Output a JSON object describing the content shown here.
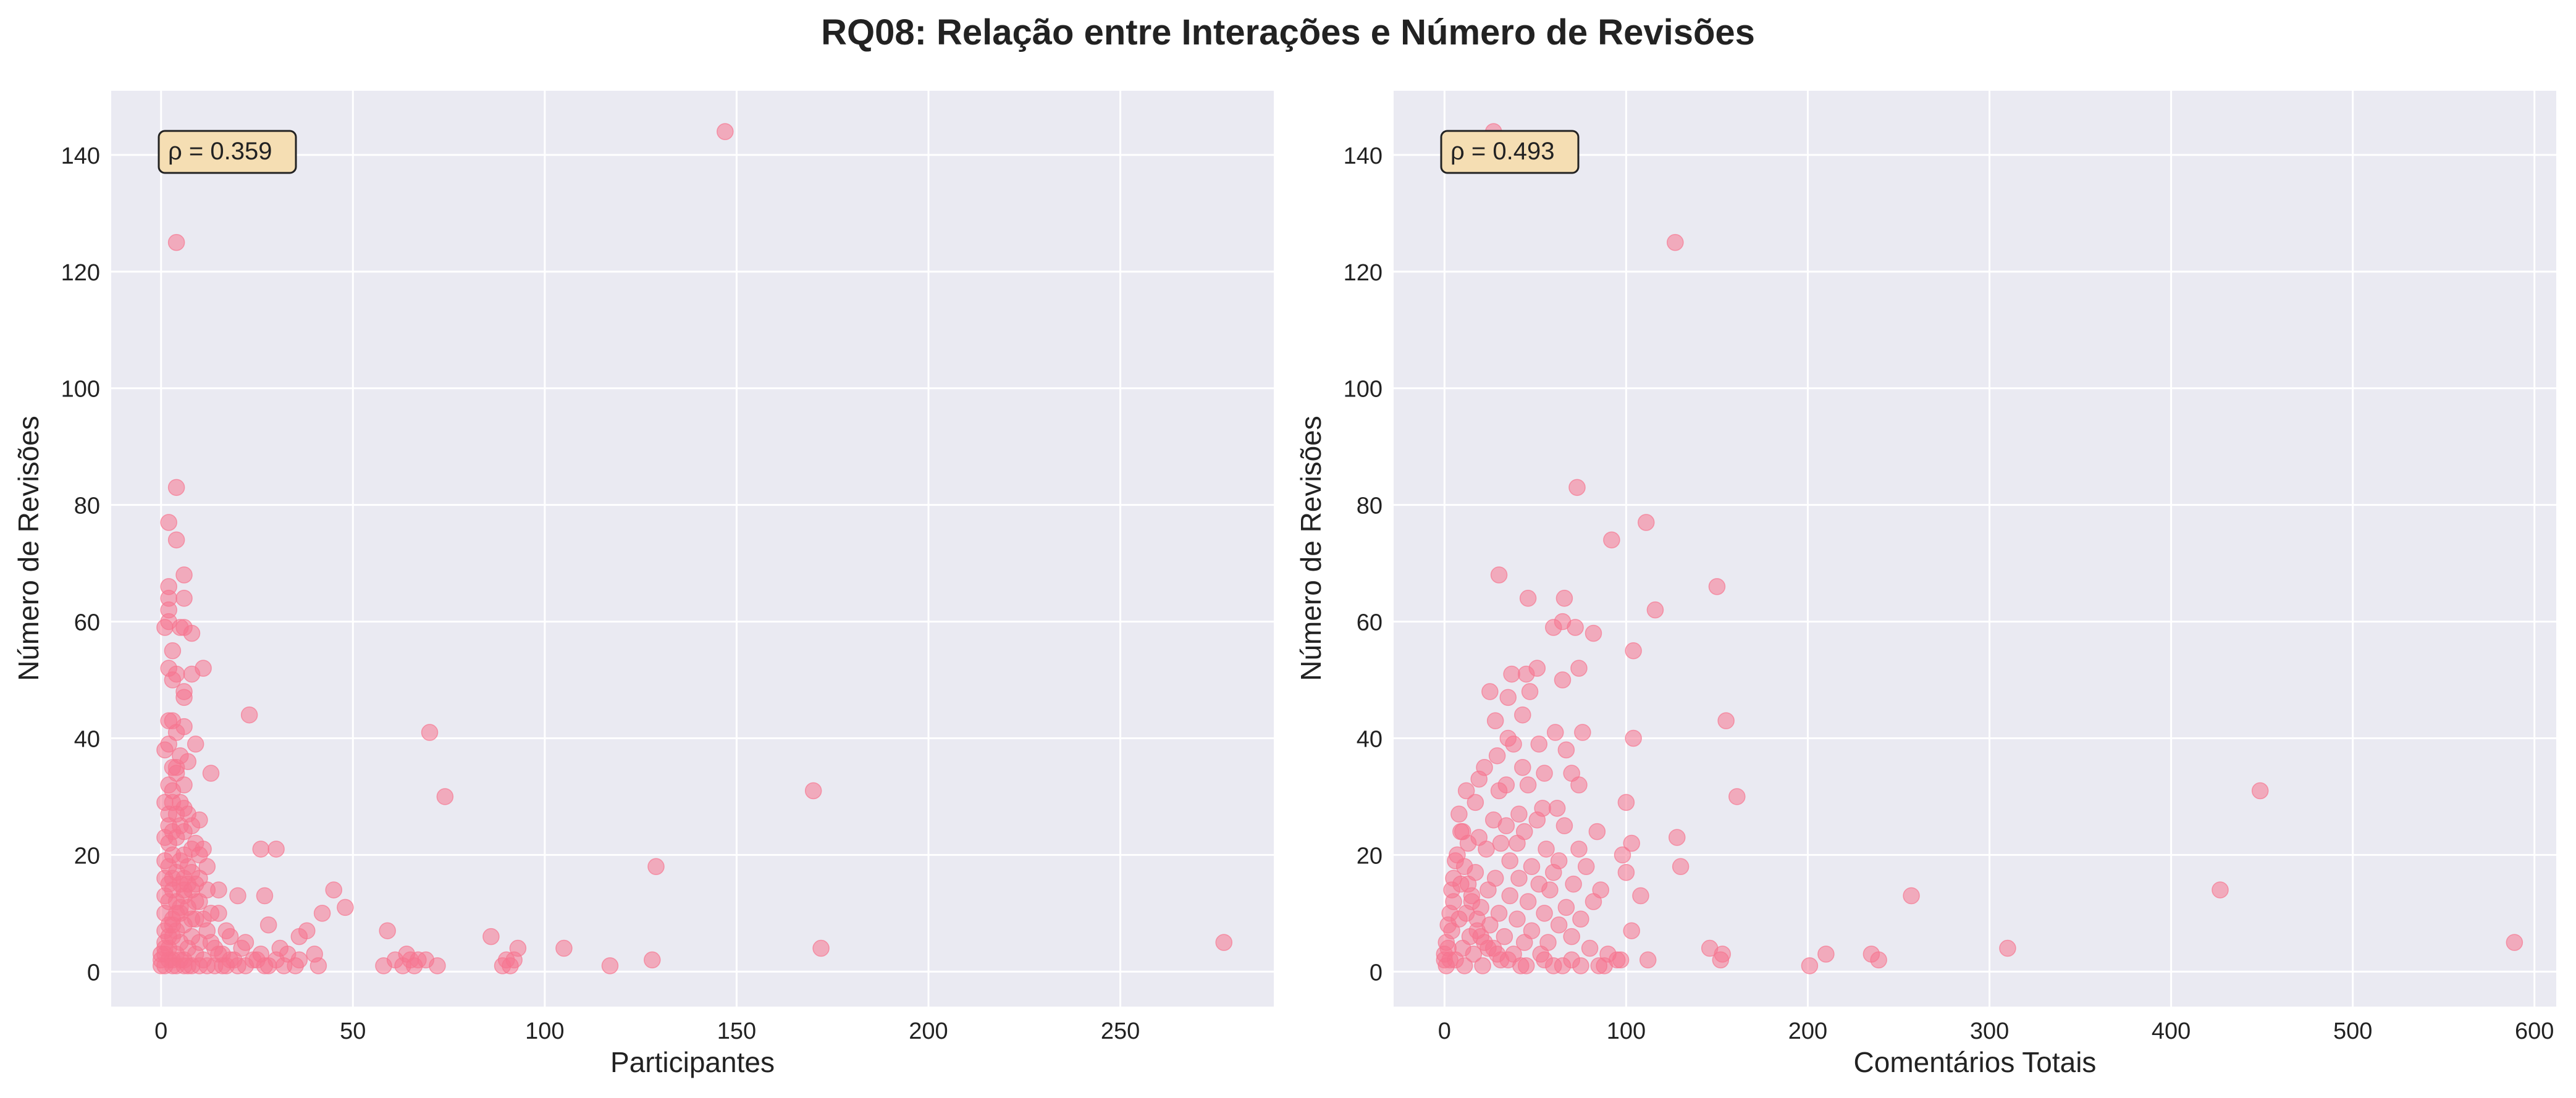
{
  "title": "RQ08: Relação entre Interações e Número de Revisões",
  "colors": {
    "background": "#ffffff",
    "plot_bg": "#eaeaf2",
    "grid": "#ffffff",
    "points": "#f6758f",
    "annotation_bg": "#f5deb3",
    "annotation_border": "#222222",
    "text": "#222222"
  },
  "chart_data": [
    {
      "type": "scatter",
      "title": "",
      "xlabel": "Participantes",
      "ylabel": "Número de Revisões",
      "annotation": "ρ = 0.359",
      "annotation_position": "top-left",
      "xlim": [
        -13,
        290
      ],
      "ylim": [
        -6,
        151
      ],
      "xticks": [
        0,
        50,
        100,
        150,
        200,
        250
      ],
      "yticks": [
        0,
        20,
        40,
        60,
        80,
        100,
        120,
        140
      ],
      "grid": true,
      "points": [
        [
          147,
          144
        ],
        [
          4,
          125
        ],
        [
          4,
          83
        ],
        [
          2,
          77
        ],
        [
          4,
          74
        ],
        [
          6,
          68
        ],
        [
          2,
          66
        ],
        [
          2,
          64
        ],
        [
          2,
          62
        ],
        [
          6,
          64
        ],
        [
          2,
          60
        ],
        [
          1,
          59
        ],
        [
          5,
          59
        ],
        [
          6,
          59
        ],
        [
          8,
          58
        ],
        [
          3,
          55
        ],
        [
          11,
          52
        ],
        [
          2,
          52
        ],
        [
          3,
          50
        ],
        [
          4,
          51
        ],
        [
          8,
          51
        ],
        [
          6,
          48
        ],
        [
          6,
          47
        ],
        [
          23,
          44
        ],
        [
          2,
          43
        ],
        [
          3,
          43
        ],
        [
          6,
          42
        ],
        [
          4,
          41
        ],
        [
          70,
          41
        ],
        [
          9,
          39
        ],
        [
          2,
          39
        ],
        [
          1,
          38
        ],
        [
          5,
          37
        ],
        [
          3,
          35
        ],
        [
          4,
          35
        ],
        [
          7,
          36
        ],
        [
          4,
          34
        ],
        [
          13,
          34
        ],
        [
          2,
          32
        ],
        [
          3,
          31
        ],
        [
          6,
          32
        ],
        [
          170,
          31
        ],
        [
          74,
          30
        ],
        [
          1,
          29
        ],
        [
          3,
          29
        ],
        [
          5,
          29
        ],
        [
          6,
          28
        ],
        [
          2,
          27
        ],
        [
          4,
          27
        ],
        [
          7,
          27
        ],
        [
          10,
          26
        ],
        [
          2,
          25
        ],
        [
          5,
          25
        ],
        [
          8,
          25
        ],
        [
          3,
          24
        ],
        [
          6,
          24
        ],
        [
          1,
          23
        ],
        [
          4,
          23
        ],
        [
          9,
          22
        ],
        [
          2,
          22
        ],
        [
          11,
          21
        ],
        [
          8,
          21
        ],
        [
          26,
          21
        ],
        [
          30,
          21
        ],
        [
          3,
          20
        ],
        [
          6,
          20
        ],
        [
          10,
          20
        ],
        [
          1,
          19
        ],
        [
          5,
          19
        ],
        [
          2,
          18
        ],
        [
          7,
          18
        ],
        [
          129,
          18
        ],
        [
          4,
          17
        ],
        [
          8,
          17
        ],
        [
          1,
          16
        ],
        [
          3,
          16
        ],
        [
          6,
          16
        ],
        [
          9,
          15
        ],
        [
          2,
          15
        ],
        [
          5,
          15
        ],
        [
          12,
          14
        ],
        [
          8,
          14
        ],
        [
          45,
          14
        ],
        [
          15,
          14
        ],
        [
          3,
          14
        ],
        [
          1,
          13
        ],
        [
          6,
          13
        ],
        [
          20,
          13
        ],
        [
          27,
          13
        ],
        [
          4,
          12
        ],
        [
          10,
          12
        ],
        [
          2,
          12
        ],
        [
          48,
          11
        ],
        [
          7,
          11
        ],
        [
          1,
          10
        ],
        [
          5,
          10
        ],
        [
          13,
          10
        ],
        [
          15,
          10
        ],
        [
          42,
          10
        ],
        [
          3,
          9
        ],
        [
          9,
          9
        ],
        [
          11,
          9
        ],
        [
          2,
          8
        ],
        [
          6,
          8
        ],
        [
          28,
          8
        ],
        [
          38,
          7
        ],
        [
          1,
          7
        ],
        [
          4,
          7
        ],
        [
          12,
          7
        ],
        [
          17,
          7
        ],
        [
          59,
          7
        ],
        [
          8,
          6
        ],
        [
          3,
          6
        ],
        [
          18,
          6
        ],
        [
          36,
          6
        ],
        [
          86,
          6
        ],
        [
          1,
          5
        ],
        [
          5,
          5
        ],
        [
          10,
          5
        ],
        [
          22,
          5
        ],
        [
          277,
          5
        ],
        [
          2,
          4
        ],
        [
          7,
          4
        ],
        [
          14,
          4
        ],
        [
          21,
          4
        ],
        [
          31,
          4
        ],
        [
          93,
          4
        ],
        [
          105,
          4
        ],
        [
          172,
          4
        ],
        [
          4,
          3
        ],
        [
          9,
          3
        ],
        [
          16,
          3
        ],
        [
          26,
          3
        ],
        [
          33,
          3
        ],
        [
          40,
          3
        ],
        [
          64,
          3
        ],
        [
          1,
          3
        ],
        [
          3,
          2
        ],
        [
          6,
          2
        ],
        [
          11,
          2
        ],
        [
          19,
          2
        ],
        [
          24,
          2
        ],
        [
          36,
          2
        ],
        [
          65,
          2
        ],
        [
          69,
          2
        ],
        [
          90,
          2
        ],
        [
          128,
          2
        ],
        [
          2,
          2
        ],
        [
          5,
          2
        ],
        [
          8,
          1
        ],
        [
          12,
          1
        ],
        [
          17,
          1
        ],
        [
          22,
          1
        ],
        [
          28,
          1
        ],
        [
          32,
          1
        ],
        [
          41,
          1
        ],
        [
          58,
          1
        ],
        [
          63,
          1
        ],
        [
          72,
          1
        ],
        [
          89,
          1
        ],
        [
          91,
          1
        ],
        [
          117,
          1
        ],
        [
          1,
          1
        ],
        [
          3,
          1
        ],
        [
          4,
          1
        ],
        [
          6,
          1
        ],
        [
          7,
          1
        ],
        [
          10,
          1
        ],
        [
          14,
          1
        ],
        [
          27,
          1
        ],
        [
          0,
          1
        ],
        [
          0,
          2
        ],
        [
          0,
          3
        ],
        [
          1,
          4
        ],
        [
          2,
          6
        ],
        [
          3,
          8
        ],
        [
          4,
          10
        ],
        [
          5,
          11
        ],
        [
          6,
          14
        ],
        [
          7,
          15
        ],
        [
          8,
          9
        ],
        [
          9,
          12
        ],
        [
          10,
          16
        ],
        [
          12,
          18
        ],
        [
          13,
          5
        ],
        [
          15,
          3
        ],
        [
          16,
          1
        ],
        [
          18,
          2
        ],
        [
          20,
          1
        ],
        [
          25,
          2
        ],
        [
          30,
          2
        ],
        [
          35,
          1
        ],
        [
          61,
          2
        ],
        [
          66,
          1
        ],
        [
          67,
          2
        ],
        [
          92,
          2
        ]
      ]
    },
    {
      "type": "scatter",
      "title": "",
      "xlabel": "Comentários Totais",
      "ylabel": "Número de Revisões",
      "annotation": "ρ = 0.493",
      "annotation_position": "top-left",
      "xlim": [
        -28,
        612
      ],
      "ylim": [
        -6,
        151
      ],
      "xticks": [
        0,
        100,
        200,
        300,
        400,
        500,
        600
      ],
      "yticks": [
        0,
        20,
        40,
        60,
        80,
        100,
        120,
        140
      ],
      "grid": true,
      "points": [
        [
          27,
          144
        ],
        [
          127,
          125
        ],
        [
          73,
          83
        ],
        [
          111,
          77
        ],
        [
          92,
          74
        ],
        [
          30,
          68
        ],
        [
          66,
          64
        ],
        [
          46,
          64
        ],
        [
          116,
          62
        ],
        [
          150,
          66
        ],
        [
          65,
          60
        ],
        [
          60,
          59
        ],
        [
          72,
          59
        ],
        [
          82,
          58
        ],
        [
          74,
          52
        ],
        [
          51,
          52
        ],
        [
          104,
          55
        ],
        [
          45,
          51
        ],
        [
          65,
          50
        ],
        [
          37,
          51
        ],
        [
          47,
          48
        ],
        [
          25,
          48
        ],
        [
          35,
          47
        ],
        [
          155,
          43
        ],
        [
          28,
          43
        ],
        [
          43,
          44
        ],
        [
          61,
          41
        ],
        [
          35,
          40
        ],
        [
          104,
          40
        ],
        [
          76,
          41
        ],
        [
          52,
          39
        ],
        [
          38,
          39
        ],
        [
          29,
          37
        ],
        [
          67,
          38
        ],
        [
          43,
          35
        ],
        [
          22,
          35
        ],
        [
          55,
          34
        ],
        [
          70,
          34
        ],
        [
          19,
          33
        ],
        [
          34,
          32
        ],
        [
          46,
          32
        ],
        [
          74,
          32
        ],
        [
          12,
          31
        ],
        [
          30,
          31
        ],
        [
          161,
          30
        ],
        [
          100,
          29
        ],
        [
          17,
          29
        ],
        [
          54,
          28
        ],
        [
          62,
          28
        ],
        [
          41,
          27
        ],
        [
          8,
          27
        ],
        [
          51,
          26
        ],
        [
          27,
          26
        ],
        [
          34,
          25
        ],
        [
          66,
          25
        ],
        [
          10,
          24
        ],
        [
          44,
          24
        ],
        [
          19,
          23
        ],
        [
          128,
          23
        ],
        [
          84,
          24
        ],
        [
          31,
          22
        ],
        [
          74,
          21
        ],
        [
          103,
          22
        ],
        [
          56,
          21
        ],
        [
          13,
          22
        ],
        [
          40,
          22
        ],
        [
          23,
          21
        ],
        [
          98,
          20
        ],
        [
          63,
          19
        ],
        [
          6,
          19
        ],
        [
          36,
          19
        ],
        [
          48,
          18
        ],
        [
          130,
          18
        ],
        [
          78,
          18
        ],
        [
          17,
          17
        ],
        [
          60,
          17
        ],
        [
          100,
          17
        ],
        [
          28,
          16
        ],
        [
          41,
          16
        ],
        [
          52,
          15
        ],
        [
          9,
          15
        ],
        [
          71,
          15
        ],
        [
          24,
          14
        ],
        [
          58,
          14
        ],
        [
          86,
          14
        ],
        [
          15,
          13
        ],
        [
          108,
          13
        ],
        [
          257,
          13
        ],
        [
          36,
          13
        ],
        [
          46,
          12
        ],
        [
          82,
          12
        ],
        [
          5,
          12
        ],
        [
          67,
          11
        ],
        [
          20,
          11
        ],
        [
          30,
          10
        ],
        [
          55,
          10
        ],
        [
          12,
          10
        ],
        [
          40,
          9
        ],
        [
          75,
          9
        ],
        [
          8,
          9
        ],
        [
          25,
          8
        ],
        [
          63,
          8
        ],
        [
          18,
          7
        ],
        [
          48,
          7
        ],
        [
          103,
          7
        ],
        [
          4,
          7
        ],
        [
          33,
          6
        ],
        [
          70,
          6
        ],
        [
          14,
          6
        ],
        [
          57,
          5
        ],
        [
          589,
          5
        ],
        [
          22,
          5
        ],
        [
          44,
          5
        ],
        [
          10,
          4
        ],
        [
          146,
          4
        ],
        [
          310,
          4
        ],
        [
          27,
          4
        ],
        [
          80,
          4
        ],
        [
          2,
          4
        ],
        [
          38,
          3
        ],
        [
          210,
          3
        ],
        [
          235,
          3
        ],
        [
          53,
          3
        ],
        [
          16,
          3
        ],
        [
          153,
          3
        ],
        [
          90,
          3
        ],
        [
          6,
          2
        ],
        [
          239,
          2
        ],
        [
          112,
          2
        ],
        [
          97,
          2
        ],
        [
          31,
          2
        ],
        [
          152,
          2
        ],
        [
          70,
          2
        ],
        [
          3,
          2
        ],
        [
          201,
          1
        ],
        [
          85,
          1
        ],
        [
          60,
          1
        ],
        [
          42,
          1
        ],
        [
          21,
          1
        ],
        [
          11,
          1
        ],
        [
          1,
          1
        ],
        [
          0,
          2
        ],
        [
          0,
          3
        ],
        [
          1,
          5
        ],
        [
          2,
          8
        ],
        [
          3,
          10
        ],
        [
          4,
          14
        ],
        [
          5,
          16
        ],
        [
          7,
          20
        ],
        [
          9,
          24
        ],
        [
          11,
          18
        ],
        [
          13,
          15
        ],
        [
          15,
          12
        ],
        [
          18,
          9
        ],
        [
          20,
          6
        ],
        [
          24,
          4
        ],
        [
          29,
          3
        ],
        [
          35,
          2
        ],
        [
          45,
          1
        ],
        [
          55,
          2
        ],
        [
          65,
          1
        ],
        [
          75,
          1
        ],
        [
          88,
          1
        ],
        [
          95,
          2
        ],
        [
          427,
          14
        ],
        [
          449,
          31
        ]
      ]
    }
  ]
}
